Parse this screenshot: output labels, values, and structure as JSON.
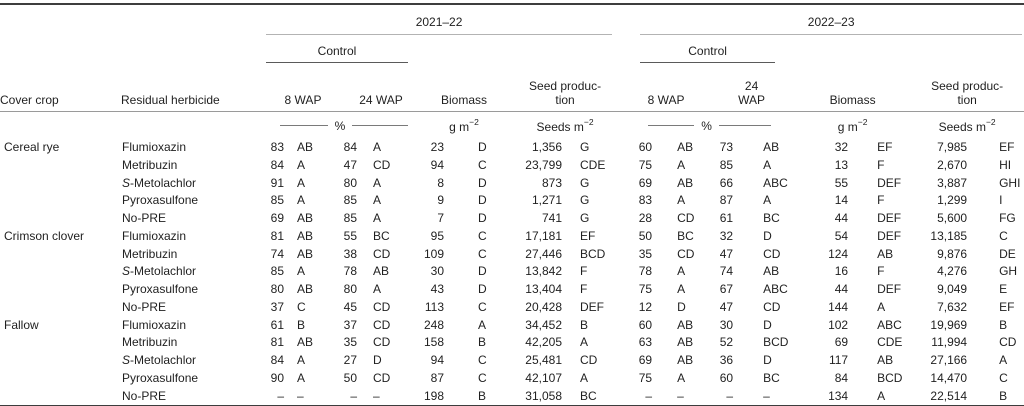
{
  "table": {
    "years": [
      "2021–22",
      "2022–23"
    ],
    "control_label": "Control",
    "cover_crop_label": "Cover crop",
    "residual_herbicide_label": "Residual herbicide",
    "wap8_label": "8 WAP",
    "wap24_label": "24 WAP",
    "biomass_label": "Biomass",
    "seed_production_line1": "Seed produc-",
    "seed_production_line2": "tion",
    "units": {
      "percent": "%",
      "gm_prefix": "g m",
      "seeds_prefix": "Seeds m",
      "sup": "−2"
    },
    "groups": [
      {
        "cover": "Cereal rye",
        "rows": [
          [
            "Flumioxazin",
            "83",
            "AB",
            "84",
            "A",
            "23",
            "D",
            "1,356",
            "G",
            "60",
            "AB",
            "73",
            "AB",
            "32",
            "EF",
            "7,985",
            "EF"
          ],
          [
            "Metribuzin",
            "84",
            "A",
            "47",
            "CD",
            "94",
            "C",
            "23,799",
            "CDE",
            "75",
            "A",
            "85",
            "A",
            "13",
            "F",
            "2,670",
            "HI"
          ],
          [
            "S-Metolachlor",
            "91",
            "A",
            "80",
            "A",
            "8",
            "D",
            "873",
            "G",
            "69",
            "AB",
            "66",
            "ABC",
            "55",
            "DEF",
            "3,887",
            "GHI"
          ],
          [
            "Pyroxasulfone",
            "85",
            "A",
            "85",
            "A",
            "9",
            "D",
            "1,271",
            "G",
            "83",
            "A",
            "87",
            "A",
            "14",
            "F",
            "1,299",
            "I"
          ],
          [
            "No-PRE",
            "69",
            "AB",
            "85",
            "A",
            "7",
            "D",
            "741",
            "G",
            "28",
            "CD",
            "61",
            "BC",
            "44",
            "DEF",
            "5,600",
            "FG"
          ]
        ]
      },
      {
        "cover": "Crimson clover",
        "rows": [
          [
            "Flumioxazin",
            "81",
            "AB",
            "55",
            "BC",
            "95",
            "C",
            "17,181",
            "EF",
            "50",
            "BC",
            "32",
            "D",
            "54",
            "DEF",
            "13,185",
            "C"
          ],
          [
            "Metribuzin",
            "74",
            "AB",
            "38",
            "CD",
            "109",
            "C",
            "27,446",
            "BCD",
            "35",
            "CD",
            "47",
            "CD",
            "124",
            "AB",
            "9,876",
            "DE"
          ],
          [
            "S-Metolachlor",
            "85",
            "A",
            "78",
            "AB",
            "30",
            "D",
            "13,842",
            "F",
            "78",
            "A",
            "74",
            "AB",
            "16",
            "F",
            "4,276",
            "GH"
          ],
          [
            "Pyroxasulfone",
            "80",
            "AB",
            "80",
            "A",
            "43",
            "D",
            "13,404",
            "F",
            "75",
            "A",
            "67",
            "ABC",
            "44",
            "DEF",
            "9,049",
            "E"
          ],
          [
            "No-PRE",
            "37",
            "C",
            "45",
            "CD",
            "113",
            "C",
            "20,428",
            "DEF",
            "12",
            "D",
            "47",
            "CD",
            "144",
            "A",
            "7,632",
            "EF"
          ]
        ]
      },
      {
        "cover": "Fallow",
        "rows": [
          [
            "Flumioxazin",
            "61",
            "B",
            "37",
            "CD",
            "248",
            "A",
            "34,452",
            "B",
            "60",
            "AB",
            "30",
            "D",
            "102",
            "ABC",
            "19,969",
            "B"
          ],
          [
            "Metribuzin",
            "81",
            "AB",
            "35",
            "CD",
            "158",
            "B",
            "42,205",
            "A",
            "63",
            "AB",
            "52",
            "BCD",
            "69",
            "CDE",
            "11,994",
            "CD"
          ],
          [
            "S-Metolachlor",
            "84",
            "A",
            "27",
            "D",
            "94",
            "C",
            "25,481",
            "CD",
            "69",
            "AB",
            "36",
            "D",
            "117",
            "AB",
            "27,166",
            "A"
          ],
          [
            "Pyroxasulfone",
            "90",
            "A",
            "50",
            "CD",
            "87",
            "C",
            "42,107",
            "A",
            "75",
            "A",
            "60",
            "BC",
            "84",
            "BCD",
            "14,470",
            "C"
          ],
          [
            "No-PRE",
            "–",
            "–",
            "–",
            "–",
            "198",
            "B",
            "31,058",
            "BC",
            "–",
            "–",
            "–",
            "–",
            "134",
            "A",
            "22,514",
            "B"
          ]
        ]
      }
    ]
  }
}
